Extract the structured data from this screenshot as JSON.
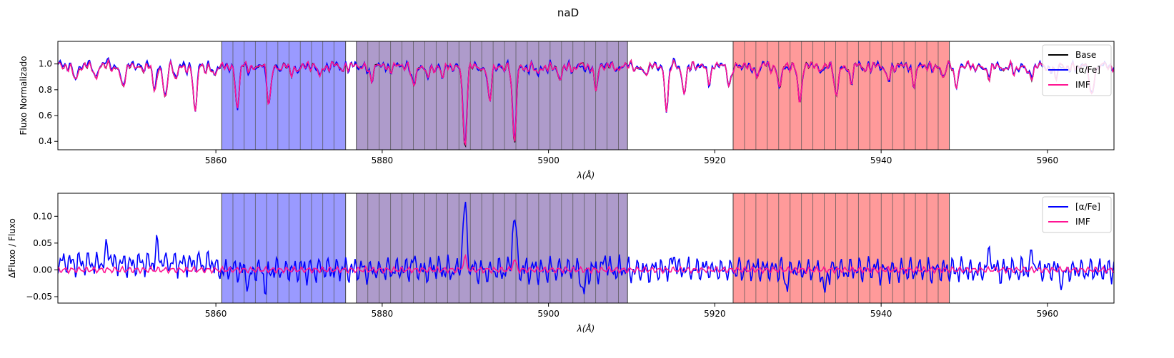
{
  "figure": {
    "title": "naD"
  },
  "colors": {
    "base": "#000000",
    "alpha": "#0000ff",
    "imf": "#ff1493",
    "blue_band": "#9a9aff",
    "purple_band": "#ae9bcb",
    "red_band": "#ff9a9a"
  },
  "chart_data": [
    {
      "type": "line",
      "ylabel": "Fluxo Normalizado",
      "xlabel": "λ(Å)",
      "xlim": [
        5841,
        5968
      ],
      "ylim": [
        0.335,
        1.175
      ],
      "xticks": [
        5860,
        5880,
        5900,
        5920,
        5940,
        5960
      ],
      "yticks": [
        0.4,
        0.6,
        0.8,
        1.0
      ],
      "ytick_labels": [
        "0.4",
        "0.6",
        "0.8",
        "1.0"
      ],
      "legend": {
        "position": "top-right",
        "entries": [
          "Base",
          "[α/Fe]",
          "IMF"
        ]
      },
      "bands": [
        {
          "color": "blue",
          "start": 5860.7,
          "end": 5875.6,
          "step": 1.35
        },
        {
          "color": "purple",
          "start": 5876.9,
          "end": 5909.5,
          "step": 1.37
        },
        {
          "color": "red",
          "start": 5922.2,
          "end": 5948.2,
          "step": 1.37
        }
      ],
      "series": [
        {
          "name": "Base",
          "color": "#000000"
        },
        {
          "name": "[α/Fe]",
          "color": "#0000ff"
        },
        {
          "name": "IMF",
          "color": "#ff1493"
        }
      ],
      "absorption_lines": [
        [
          5843.2,
          0.1,
          0.35
        ],
        [
          5845.6,
          0.07,
          0.3
        ],
        [
          5848.8,
          0.16,
          0.35
        ],
        [
          5852.6,
          0.18,
          0.35
        ],
        [
          5853.9,
          0.25,
          0.3
        ],
        [
          5855.2,
          0.1,
          0.3
        ],
        [
          5857.5,
          0.37,
          0.3
        ],
        [
          5859.8,
          0.08,
          0.3
        ],
        [
          5862.6,
          0.32,
          0.3
        ],
        [
          5866.4,
          0.3,
          0.3
        ],
        [
          5869.1,
          0.07,
          0.3
        ],
        [
          5872.5,
          0.06,
          0.3
        ],
        [
          5878.7,
          0.09,
          0.3
        ],
        [
          5883.8,
          0.15,
          0.3
        ],
        [
          5885.4,
          0.1,
          0.3
        ],
        [
          5887.3,
          0.08,
          0.3
        ],
        [
          5889.95,
          0.63,
          0.32
        ],
        [
          5892.9,
          0.29,
          0.3
        ],
        [
          5895.9,
          0.59,
          0.32
        ],
        [
          5898.7,
          0.08,
          0.3
        ],
        [
          5901.4,
          0.12,
          0.3
        ],
        [
          5905.7,
          0.16,
          0.3
        ],
        [
          5911.6,
          0.07,
          0.3
        ],
        [
          5914.2,
          0.31,
          0.3
        ],
        [
          5916.3,
          0.2,
          0.3
        ],
        [
          5919.3,
          0.1,
          0.3
        ],
        [
          5921.8,
          0.13,
          0.3
        ],
        [
          5925.0,
          0.06,
          0.3
        ],
        [
          5927.8,
          0.16,
          0.3
        ],
        [
          5930.2,
          0.27,
          0.3
        ],
        [
          5934.6,
          0.25,
          0.3
        ],
        [
          5936.4,
          0.11,
          0.3
        ],
        [
          5940.8,
          0.11,
          0.3
        ],
        [
          5944.0,
          0.12,
          0.3
        ],
        [
          5947.5,
          0.08,
          0.3
        ],
        [
          5949.0,
          0.13,
          0.3
        ],
        [
          5953.0,
          0.09,
          0.3
        ],
        [
          5956.0,
          0.06,
          0.3
        ],
        [
          5958.0,
          0.1,
          0.3
        ],
        [
          5961.0,
          0.09,
          0.3
        ],
        [
          5965.3,
          0.24,
          0.3
        ]
      ]
    },
    {
      "type": "line",
      "ylabel": "ΔFluxo / Fluxo",
      "xlabel": "λ(Å)",
      "xlim": [
        5841,
        5968
      ],
      "ylim": [
        -0.062,
        0.143
      ],
      "xticks": [
        5860,
        5880,
        5900,
        5920,
        5940,
        5960
      ],
      "yticks": [
        -0.05,
        0.0,
        0.05,
        0.1
      ],
      "ytick_labels": [
        "−0.05",
        "0.00",
        "0.05",
        "0.10"
      ],
      "legend": {
        "position": "top-right",
        "entries": [
          "[α/Fe]",
          "IMF"
        ]
      },
      "series": [
        {
          "name": "[α/Fe]",
          "color": "#0000ff"
        },
        {
          "name": "IMF",
          "color": "#ff1493"
        }
      ],
      "peaks": [
        [
          5889.95,
          0.115,
          0.35
        ],
        [
          5895.9,
          0.105,
          0.33
        ],
        [
          5904.2,
          -0.045,
          0.3
        ],
        [
          5866.0,
          -0.03,
          0.3
        ],
        [
          5864.0,
          -0.025,
          0.3
        ],
        [
          5933.2,
          -0.042,
          0.3
        ],
        [
          5928.6,
          -0.03,
          0.3
        ],
        [
          5953.1,
          0.035,
          0.3
        ],
        [
          5958.2,
          0.03,
          0.3
        ],
        [
          5961.8,
          -0.025,
          0.3
        ],
        [
          5915.1,
          0.03,
          0.3
        ],
        [
          5906.8,
          0.02,
          0.3
        ],
        [
          5883.8,
          0.015,
          0.3
        ],
        [
          5853.0,
          0.03,
          0.3
        ],
        [
          5847.0,
          0.03,
          0.3
        ]
      ]
    }
  ]
}
